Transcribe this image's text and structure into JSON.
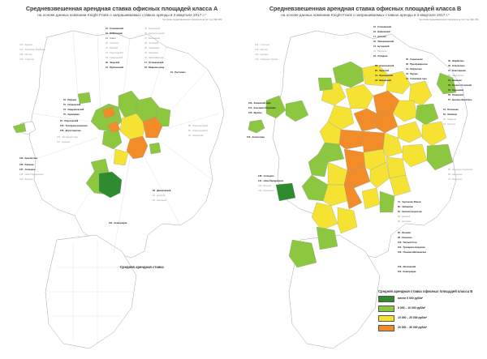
{
  "left_map": {
    "title": "Средневзвешенная арендная ставка офисных площадей класса А",
    "subtitle": "на основе данных компании Knight Frank о запрашиваемых ставках аренды в 3 квартале 2017 г.*",
    "source_note": "*на основе средневзвешенного показателя на 1 м² / год, НДС 18%",
    "legend_title": "Средняя арендная ставка",
    "district_labels": [
      "15 · Головинский",
      "16 · Войковский",
      "24 · Сокол",
      "25 · Аэропорт",
      "26 · Беговой",
      "27 · Хорошевский",
      "28 · Савёловский",
      "30 · Тверской",
      "31 · Пресненский",
      "34 · Мещанский",
      "36 · Красносельский",
      "37 · Басманный",
      "38 · Таганский",
      "39 · Хамовники",
      "40 · Якиманка",
      "42 · Замоскворечье",
      "64 · Раменки",
      "70 · Гагаринский",
      "72 · Академический",
      "75 · Черемушки",
      "97 · Обручевский",
      "100 · Тропарево-Никулино",
      "106 · Дорогомилово",
      "107 · Филевский парк",
      "111 · Кунцево",
      "120 · Щукино",
      "123 · Хорошево-Мневники",
      "128 · Митино",
      "129 · Строгино",
      "83 · Даниловский",
      "84 · Донской",
      "86 · Нагорный",
      "88 · Южнопортовый",
      "92 · Нижегородский",
      "93 · Лефортово",
      "19 · Ростокино",
      "17 · Останкинский",
      "18 · Марьина роща",
      "145 · Внуково",
      "130 · Крылатское",
      "133 · Раменки",
      "137 · Солнцево",
      "148 · Ново-Переделкино",
      "164 · Коммунарка"
    ]
  },
  "right_map": {
    "title": "Средневзвешенная арендная ставка офисных площадей класса В",
    "subtitle": "на основе данных компании Knight Frank о запрашиваемых ставках аренды в 3 квартале 2017 г.*",
    "source_note": "*на основе средневзвешенного показателя на 1 м² / год, НДС 18%",
    "legend": {
      "title": "Средняя арендная ставка офисных площадей класса В",
      "items": [
        {
          "label": "менее 5 000 руб/м²",
          "color": "#2e8b2e"
        },
        {
          "label": "5 000 – 10 000 руб/м²",
          "color": "#8dc63f"
        },
        {
          "label": "10 000 – 20 000 руб/м²",
          "color": "#f5e232"
        },
        {
          "label": "20 000 – 30 000 руб/м²",
          "color": "#f28c28"
        }
      ]
    },
    "district_labels": [
      "15 · Головинский",
      "16 · Войковский",
      "17 · Коптево",
      "20 · Тимирязевский",
      "21 · Бутырский",
      "22 · Марфино",
      "23 · Отрадное",
      "29 · Алексеевский",
      "30 · Тверской",
      "31 · Пресненский",
      "33 · Мещанский",
      "35 · Сокольники",
      "36 · Преображенское",
      "41 · Лефортово",
      "43 · Перово",
      "44 · Соколиная гора",
      "45 · Измайлово",
      "46 · Новокосино",
      "47 · Новогиреево",
      "50 · Ивановское",
      "51 · Вешняки",
      "53 · Косино-Ухтомский",
      "55 · Кузьминки",
      "56 · Рязанский",
      "57 · Выхино-Жулебино",
      "61 · Печатники",
      "62 · Люблино",
      "63 · Марьино",
      "64 · Капотня",
      "66 · Нагатино-Садовники",
      "68 · Царицыно",
      "73 · Бирюлево",
      "74 · Чертаново Южное",
      "80 · Зябликово",
      "84 · Орехово-Борисово",
      "88 · Донской",
      "90 · Котловка",
      "95 · Ясенево",
      "98 · Коньково",
      "100 · Теплый Стан",
      "104 · Тропарево-Никулино",
      "106 · Очаково-Матвеевское",
      "109 · Филевский парк",
      "112 · Хорошево-Мневники",
      "120 · Щукино",
      "124 · Строгино",
      "126 · Митино",
      "130 · Куркино",
      "133 · Северное Тушино",
      "138 · Солнцево",
      "141 · Ново-Переделкино",
      "145 · Внуково",
      "146 · Кокошкино",
      "150 · Зеленоград",
      "159 · Московский",
      "164 · Коммунарка"
    ]
  },
  "colors": {
    "dark_green": "#2e8b2e",
    "light_green": "#8dc63f",
    "yellow": "#f5e232",
    "orange": "#f28c28",
    "outline": "#9aa7b4",
    "region_fill": "#ffffff"
  }
}
